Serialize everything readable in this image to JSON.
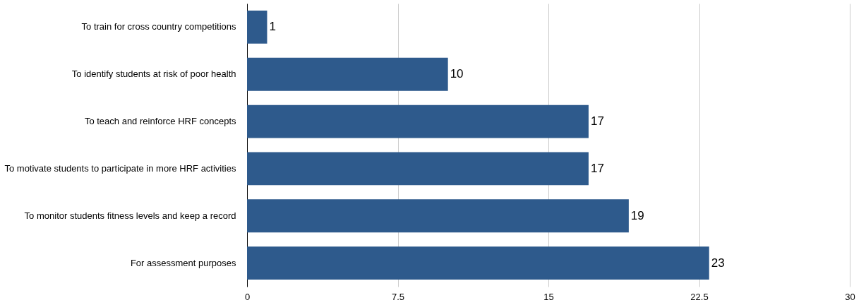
{
  "chart_data": {
    "type": "bar",
    "orientation": "horizontal",
    "categories": [
      "To train for cross country competitions",
      "To identify students at risk of poor health",
      "To teach and reinforce HRF concepts",
      "To motivate students to participate in more HRF activities",
      "To monitor students fitness levels and keep a record",
      "For assessment purposes"
    ],
    "values": [
      1,
      10,
      17,
      17,
      19,
      23
    ],
    "color": "#2e5a8c",
    "xlim": [
      0,
      30
    ],
    "xticks": [
      0,
      7.5,
      15,
      22.5,
      30
    ],
    "grid": "x",
    "data_labels": true
  }
}
